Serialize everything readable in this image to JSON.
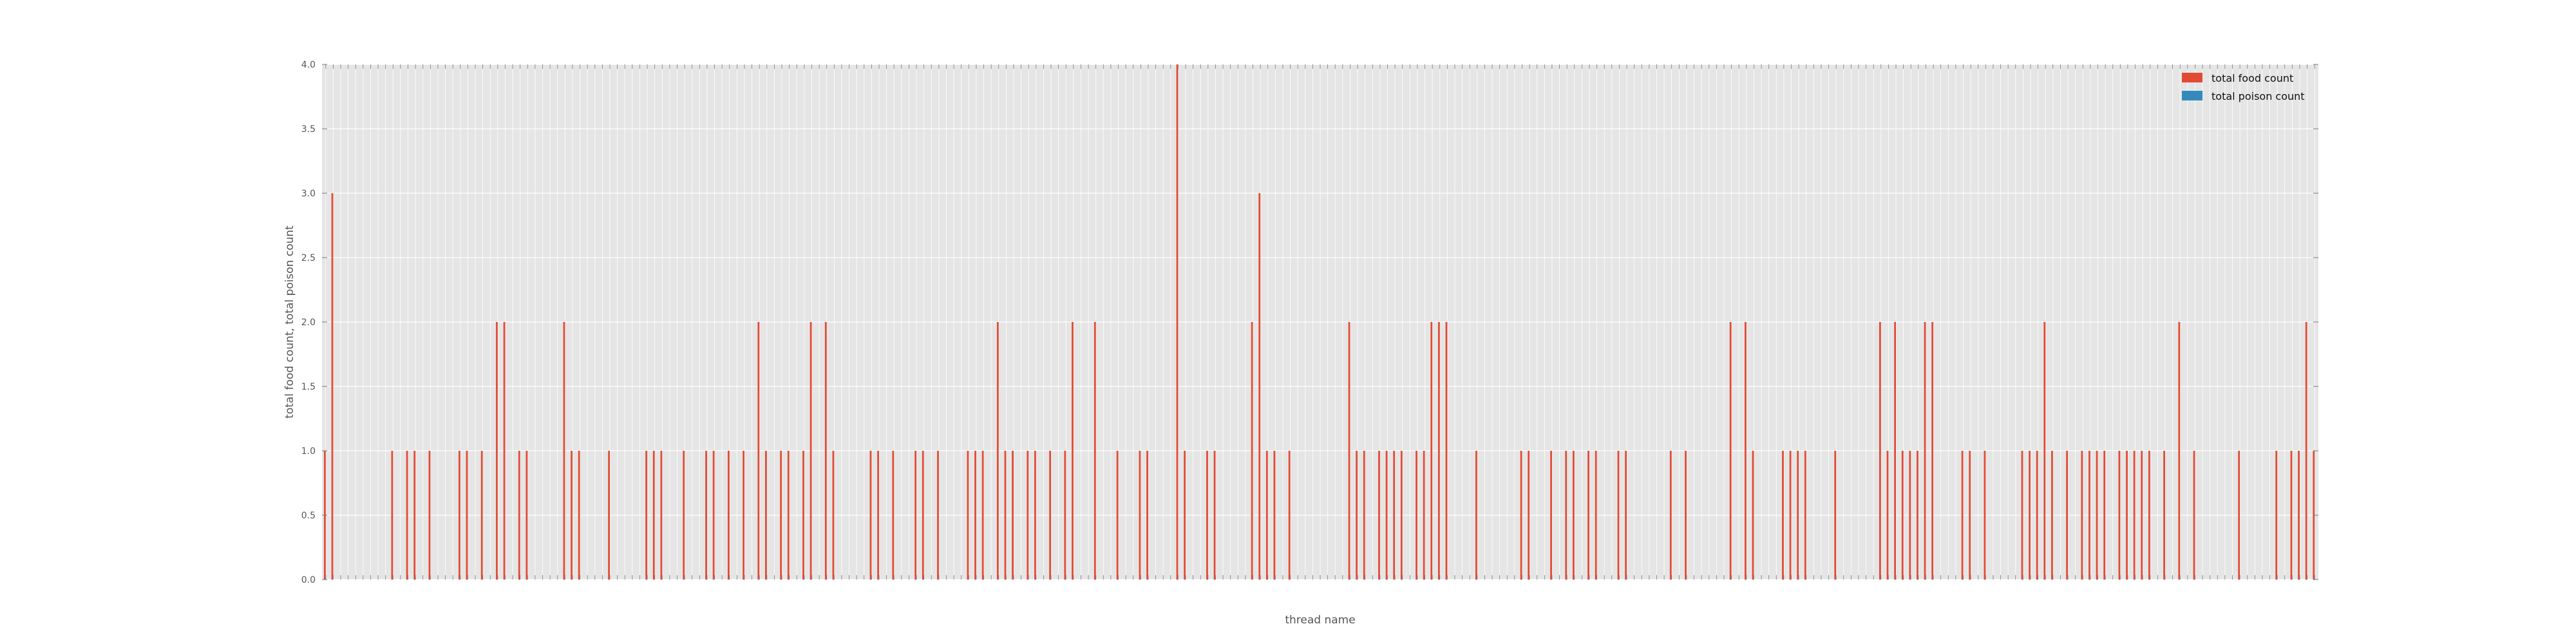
{
  "chart_data": {
    "type": "bar",
    "title": "",
    "xlabel": "thread name",
    "ylabel": "total food count, total poison count",
    "ylim": [
      0,
      4
    ],
    "yticks": [
      "0.0",
      "0.5",
      "1.0",
      "1.5",
      "2.0",
      "2.5",
      "3.0",
      "3.5",
      "4.0"
    ],
    "grid": true,
    "legend_position": "top-right",
    "colors": {
      "food": "#E24A33",
      "poison": "#348ABD",
      "background": "#E5E5E5",
      "grid": "#FFFFFF"
    },
    "series": [
      {
        "name": "total food count",
        "values": [
          1,
          3,
          0,
          0,
          0,
          0,
          0,
          0,
          0,
          1,
          0,
          1,
          1,
          0,
          1,
          0,
          0,
          0,
          1,
          1,
          0,
          1,
          0,
          2,
          2,
          0,
          1,
          1,
          0,
          0,
          0,
          0,
          2,
          1,
          1,
          0,
          0,
          0,
          1,
          0,
          0,
          0,
          0,
          1,
          1,
          1,
          0,
          0,
          1,
          0,
          0,
          1,
          1,
          0,
          1,
          0,
          1,
          0,
          2,
          1,
          0,
          1,
          1,
          0,
          1,
          2,
          0,
          2,
          1,
          0,
          0,
          0,
          0,
          1,
          1,
          0,
          1,
          0,
          0,
          1,
          1,
          0,
          1,
          0,
          0,
          0,
          1,
          1,
          1,
          0,
          2,
          1,
          1,
          0,
          1,
          1,
          0,
          1,
          0,
          1,
          2,
          0,
          0,
          2,
          0,
          0,
          1,
          0,
          0,
          1,
          1,
          0,
          0,
          0,
          4,
          1,
          0,
          0,
          1,
          1,
          0,
          0,
          0,
          0,
          2,
          3,
          1,
          1,
          0,
          1,
          0,
          0,
          0,
          0,
          0,
          0,
          0,
          2,
          1,
          1,
          0,
          1,
          1,
          1,
          1,
          0,
          1,
          1,
          2,
          2,
          2,
          0,
          0,
          0,
          1,
          0,
          0,
          0,
          0,
          0,
          1,
          1,
          0,
          0,
          1,
          0,
          1,
          1,
          0,
          1,
          1,
          0,
          0,
          1,
          1,
          0,
          0,
          0,
          0,
          0,
          1,
          0,
          1,
          0,
          0,
          0,
          0,
          0,
          2,
          0,
          2,
          1,
          0,
          0,
          0,
          1,
          1,
          1,
          1,
          0,
          0,
          0,
          1,
          0,
          0,
          0,
          0,
          0,
          2,
          1,
          2,
          1,
          1,
          1,
          2,
          2,
          0,
          0,
          0,
          1,
          1,
          0,
          1,
          0,
          0,
          0,
          0,
          1,
          1,
          1,
          2,
          1,
          0,
          1,
          0,
          1,
          1,
          1,
          1,
          0,
          1,
          1,
          1,
          1,
          1,
          0,
          1,
          0,
          2,
          0,
          1,
          0,
          0,
          0,
          0,
          0,
          1,
          0,
          0,
          0,
          0,
          1,
          0,
          1,
          1,
          2,
          1
        ]
      },
      {
        "name": "total poison count",
        "values": [
          0,
          0,
          0,
          0,
          0,
          0,
          0,
          0,
          0,
          0,
          0,
          0,
          0,
          0,
          0,
          0,
          0,
          0,
          0,
          0,
          0,
          0,
          0,
          0,
          0,
          0,
          0,
          0,
          0,
          0,
          0,
          0,
          0,
          0,
          0,
          0,
          0,
          0,
          0,
          0,
          0,
          0,
          0,
          0,
          0,
          0,
          0,
          0,
          0,
          0,
          0,
          0,
          0,
          0,
          0,
          0,
          0,
          0,
          0,
          0,
          0,
          0,
          0,
          0,
          0,
          0,
          0,
          0,
          0,
          0,
          0,
          0,
          0,
          0,
          0,
          0,
          0,
          0,
          0,
          0,
          0,
          0,
          0,
          0,
          0,
          0,
          0,
          0,
          0,
          0,
          0,
          0,
          0,
          0,
          0,
          0,
          0,
          0,
          0,
          0,
          0,
          0,
          0,
          0,
          0,
          0,
          0,
          0,
          0,
          0,
          0,
          0,
          0,
          0,
          0,
          0,
          0,
          0,
          0,
          0,
          0,
          0,
          0,
          0,
          0,
          0,
          0,
          0,
          0,
          0,
          0,
          0,
          0,
          0,
          0,
          0,
          0,
          0,
          0,
          0,
          0,
          0,
          0,
          0,
          0,
          0,
          0,
          0,
          0,
          0,
          0,
          0,
          0,
          0,
          0,
          0,
          0,
          0,
          0,
          0,
          0,
          0,
          0,
          0,
          0,
          0,
          0,
          0,
          0,
          0,
          0,
          0,
          0,
          0,
          0,
          0,
          0,
          0,
          0,
          0,
          0,
          0,
          0,
          0,
          0,
          0,
          0,
          0,
          0,
          0,
          0,
          0,
          0,
          0,
          0,
          0,
          0,
          0,
          0,
          0,
          0,
          0,
          0,
          0,
          0,
          0,
          0,
          0,
          0,
          0,
          0,
          0,
          0,
          0,
          0,
          0,
          0,
          0,
          0,
          0,
          0,
          0,
          0,
          0,
          0,
          0,
          0,
          0,
          0,
          0,
          0,
          0,
          0,
          0,
          0,
          0,
          0,
          0,
          0,
          0,
          0,
          0,
          0,
          0,
          0,
          0,
          0,
          0,
          0,
          0,
          0,
          0,
          0,
          0,
          0,
          0,
          0,
          0,
          0,
          0,
          0,
          0,
          0,
          0,
          0,
          0,
          0,
          0,
          0,
          0,
          0,
          0,
          0,
          0,
          0,
          0,
          0
        ]
      }
    ]
  }
}
